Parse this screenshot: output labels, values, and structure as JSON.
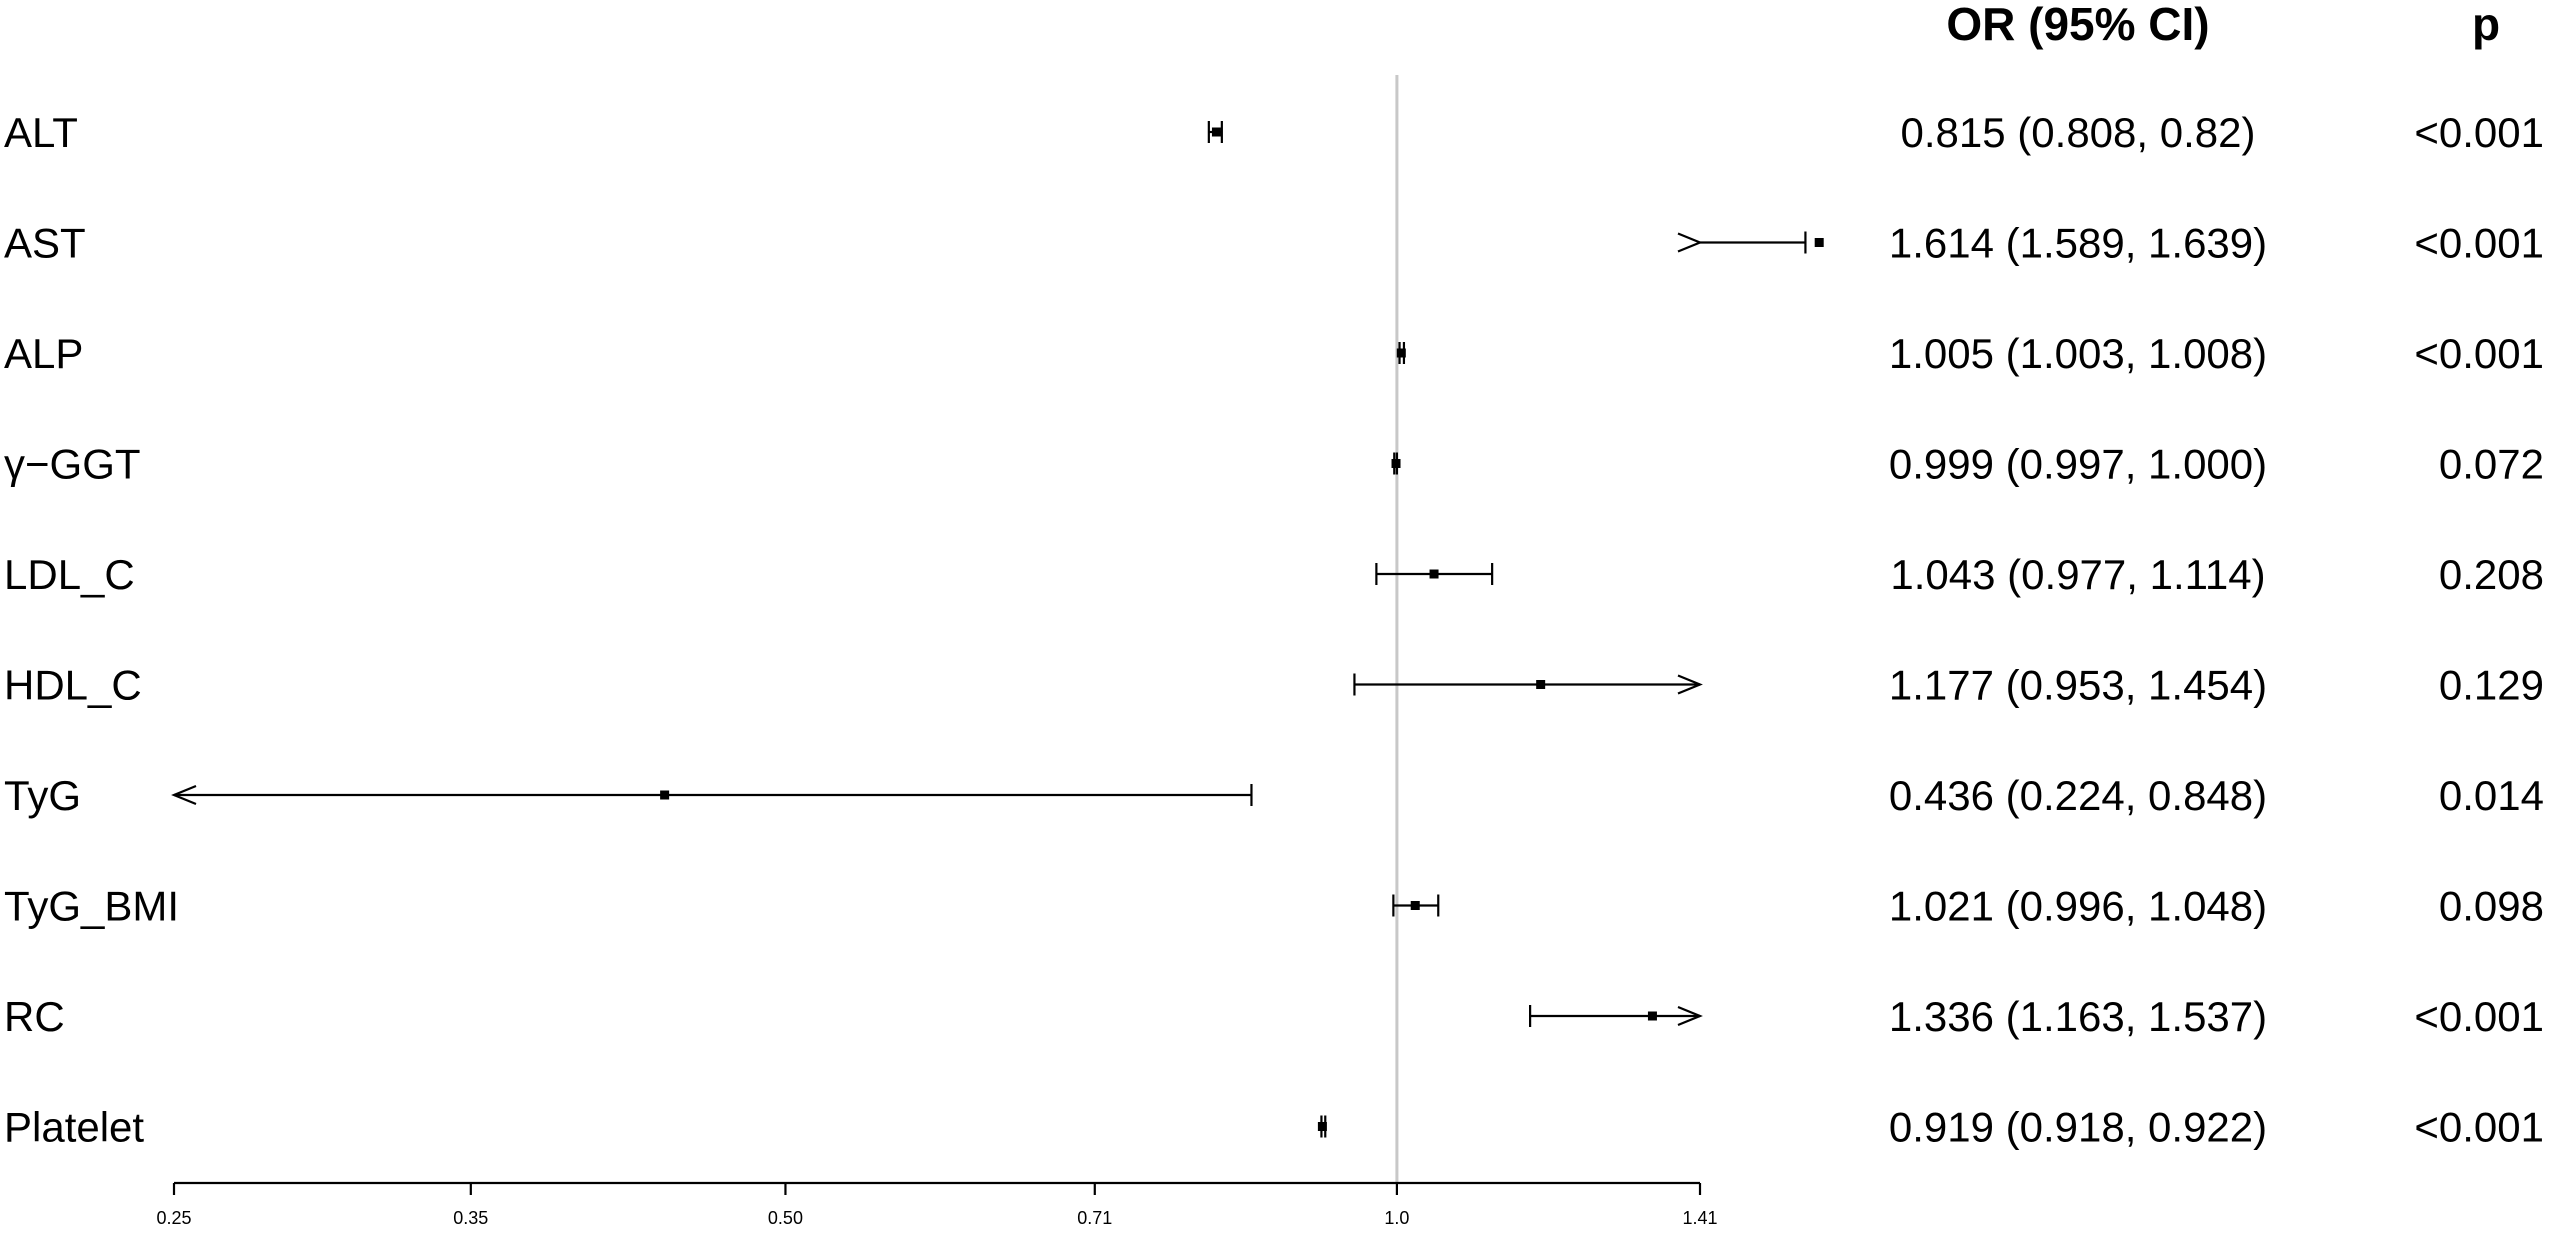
{
  "chart_data": {
    "type": "forest",
    "headers": {
      "or": "OR (95% CI)",
      "p": "p"
    },
    "x_axis": {
      "scale": "log",
      "range": [
        0.25,
        1.41
      ],
      "ticks": [
        0.25,
        0.35,
        0.5,
        0.71,
        1.0,
        1.41
      ],
      "tick_labels": [
        "0.25",
        "0.35",
        "0.50",
        "0.71",
        "1.0",
        "1.41"
      ],
      "reference_line": 1.0
    },
    "rows": [
      {
        "label": "ALT",
        "or": 0.815,
        "lo": 0.808,
        "hi": 0.82,
        "or_text": "0.815 (0.808, 0.82)",
        "p": "<0.001"
      },
      {
        "label": "AST",
        "or": 1.614,
        "lo": 1.589,
        "hi": 1.639,
        "or_text": "1.614 (1.589, 1.639)",
        "p": "<0.001"
      },
      {
        "label": "ALP",
        "or": 1.005,
        "lo": 1.003,
        "hi": 1.008,
        "or_text": "1.005 (1.003, 1.008)",
        "p": "<0.001"
      },
      {
        "label": "γ−GGT",
        "or": 0.999,
        "lo": 0.997,
        "hi": 1.0,
        "or_text": "0.999 (0.997, 1.000)",
        "p": "0.072"
      },
      {
        "label": "LDL_C",
        "or": 1.043,
        "lo": 0.977,
        "hi": 1.114,
        "or_text": "1.043 (0.977, 1.114)",
        "p": "0.208"
      },
      {
        "label": "HDL_C",
        "or": 1.177,
        "lo": 0.953,
        "hi": 1.454,
        "or_text": "1.177 (0.953, 1.454)",
        "p": "0.129"
      },
      {
        "label": "TyG",
        "or": 0.436,
        "lo": 0.224,
        "hi": 0.848,
        "or_text": "0.436 (0.224, 0.848)",
        "p": "0.014"
      },
      {
        "label": "TyG_BMI",
        "or": 1.021,
        "lo": 0.996,
        "hi": 1.048,
        "or_text": "1.021 (0.996, 1.048)",
        "p": "0.098"
      },
      {
        "label": "RC",
        "or": 1.336,
        "lo": 1.163,
        "hi": 1.537,
        "or_text": "1.336 (1.163, 1.537)",
        "p": "<0.001"
      },
      {
        "label": "Platelet",
        "or": 0.919,
        "lo": 0.918,
        "hi": 0.922,
        "or_text": "0.919 (0.918, 0.922)",
        "p": "<0.001"
      }
    ],
    "colors": {
      "reference_line": "#c8c8c8",
      "marks": "#000000"
    }
  }
}
